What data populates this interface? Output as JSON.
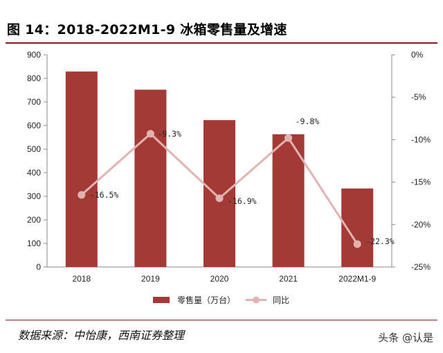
{
  "title": "图 14：2018-2022M1-9 冰箱零售量及增速",
  "source": "数据来源：中怡康，西南证券整理",
  "watermark": "头条 @认是",
  "colors": {
    "bar": "#a33a36",
    "line": "#e3b3b1",
    "rule": "#8b1a1a"
  },
  "chart_data": {
    "type": "bar+line",
    "categories": [
      "2018",
      "2019",
      "2020",
      "2021",
      "2022M1-9"
    ],
    "series": [
      {
        "name": "零售量（万台）",
        "type": "bar",
        "axis": "left",
        "values": [
          829,
          752,
          623,
          563,
          333
        ]
      },
      {
        "name": "同比",
        "type": "line",
        "axis": "right",
        "values": [
          -16.5,
          -9.3,
          -16.9,
          -9.8,
          -22.3
        ],
        "labels": [
          "-16.5%",
          "-9.3%",
          "-16.9%",
          "-9.8%",
          "-22.3%"
        ]
      }
    ],
    "y_left": {
      "min": 0,
      "max": 900,
      "ticks": [
        "0",
        "100",
        "200",
        "300",
        "400",
        "500",
        "600",
        "700",
        "800",
        "900"
      ]
    },
    "y_right": {
      "min": -25,
      "max": 0,
      "ticks": [
        "0%",
        "-5%",
        "-10%",
        "-15%",
        "-20%",
        "-25%"
      ]
    },
    "legend_position": "bottom",
    "grid": false
  }
}
